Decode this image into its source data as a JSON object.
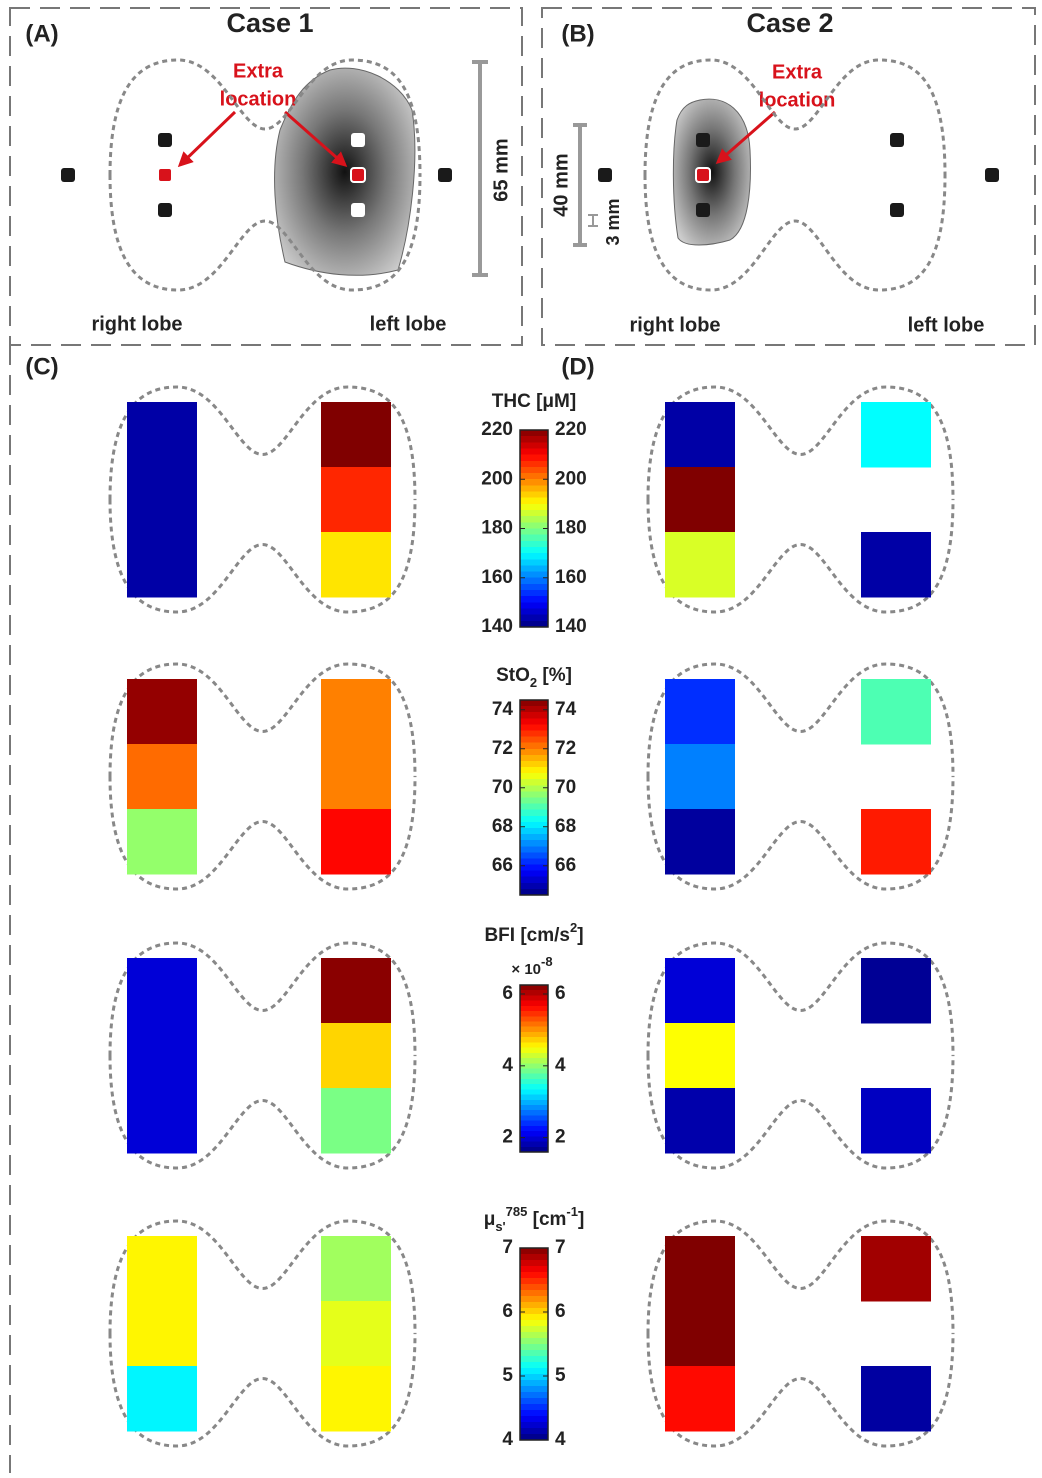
{
  "cases": [
    {
      "label": "(A)",
      "title": "Case 1",
      "annotation": [
        "Extra",
        "location"
      ],
      "scales": [
        "65 mm"
      ],
      "lobes": [
        "right lobe",
        "left lobe"
      ]
    },
    {
      "label": "(B)",
      "title": "Case 2",
      "annotation": [
        "Extra",
        "location"
      ],
      "scales": [
        "40 mm",
        "3 mm"
      ],
      "lobes": [
        "right lobe",
        "left lobe"
      ]
    }
  ],
  "map_labels": [
    "(C)",
    "(D)"
  ],
  "maps": [
    {
      "title": [
        {
          "text": "THC [μM]"
        }
      ],
      "range": [
        140,
        220
      ],
      "ticks": [
        140,
        160,
        180,
        200,
        220
      ],
      "cases": [
        {
          "right": [
            143,
            143,
            143
          ],
          "left": [
            220,
            207,
            192
          ]
        },
        {
          "right": [
            143,
            220,
            187
          ],
          "left": [
            170,
            null,
            143
          ]
        }
      ]
    },
    {
      "title": [
        {
          "text": "StO"
        },
        {
          "text": "2",
          "sub": true
        },
        {
          "text": " [%]"
        }
      ],
      "range": [
        64.5,
        74.5
      ],
      "ticks": [
        66,
        68,
        70,
        72,
        74
      ],
      "cases": [
        {
          "right": [
            74.3,
            72.2,
            69.7
          ],
          "left": [
            72.0,
            72.0,
            73.2
          ]
        },
        {
          "right": [
            66.2,
            67.0,
            64.8
          ],
          "left": [
            69.0,
            null,
            73.0
          ]
        }
      ]
    },
    {
      "title": [
        {
          "text": "BFI [cm/s"
        },
        {
          "text": "2",
          "sup": true
        },
        {
          "text": "]"
        }
      ],
      "multiplier": [
        {
          "text": "× 10"
        },
        {
          "text": "-8",
          "sup": true
        }
      ],
      "range": [
        1.6,
        6.25
      ],
      "ticks": [
        2,
        4,
        6
      ],
      "cases": [
        {
          "right": [
            2.0,
            2.0,
            2.0
          ],
          "left": [
            6.2,
            4.7,
            3.9
          ]
        },
        {
          "right": [
            2.0,
            4.5,
            1.8
          ],
          "left": [
            1.7,
            null,
            1.9
          ]
        }
      ]
    },
    {
      "title": [
        {
          "text": "μ"
        },
        {
          "text": "s'",
          "sub": true
        },
        {
          "text": "785",
          "sup": true
        },
        {
          "text": " [cm"
        },
        {
          "text": "-1",
          "sup": true
        },
        {
          "text": "]"
        }
      ],
      "range": [
        4,
        7
      ],
      "ticks": [
        4,
        5,
        6,
        7
      ],
      "cases": [
        {
          "right": [
            5.9,
            5.9,
            5.1
          ],
          "left": [
            5.6,
            5.8,
            5.9
          ]
        },
        {
          "right": [
            7.0,
            7.0,
            6.6
          ],
          "left": [
            6.9,
            null,
            4.1
          ]
        }
      ]
    }
  ]
}
